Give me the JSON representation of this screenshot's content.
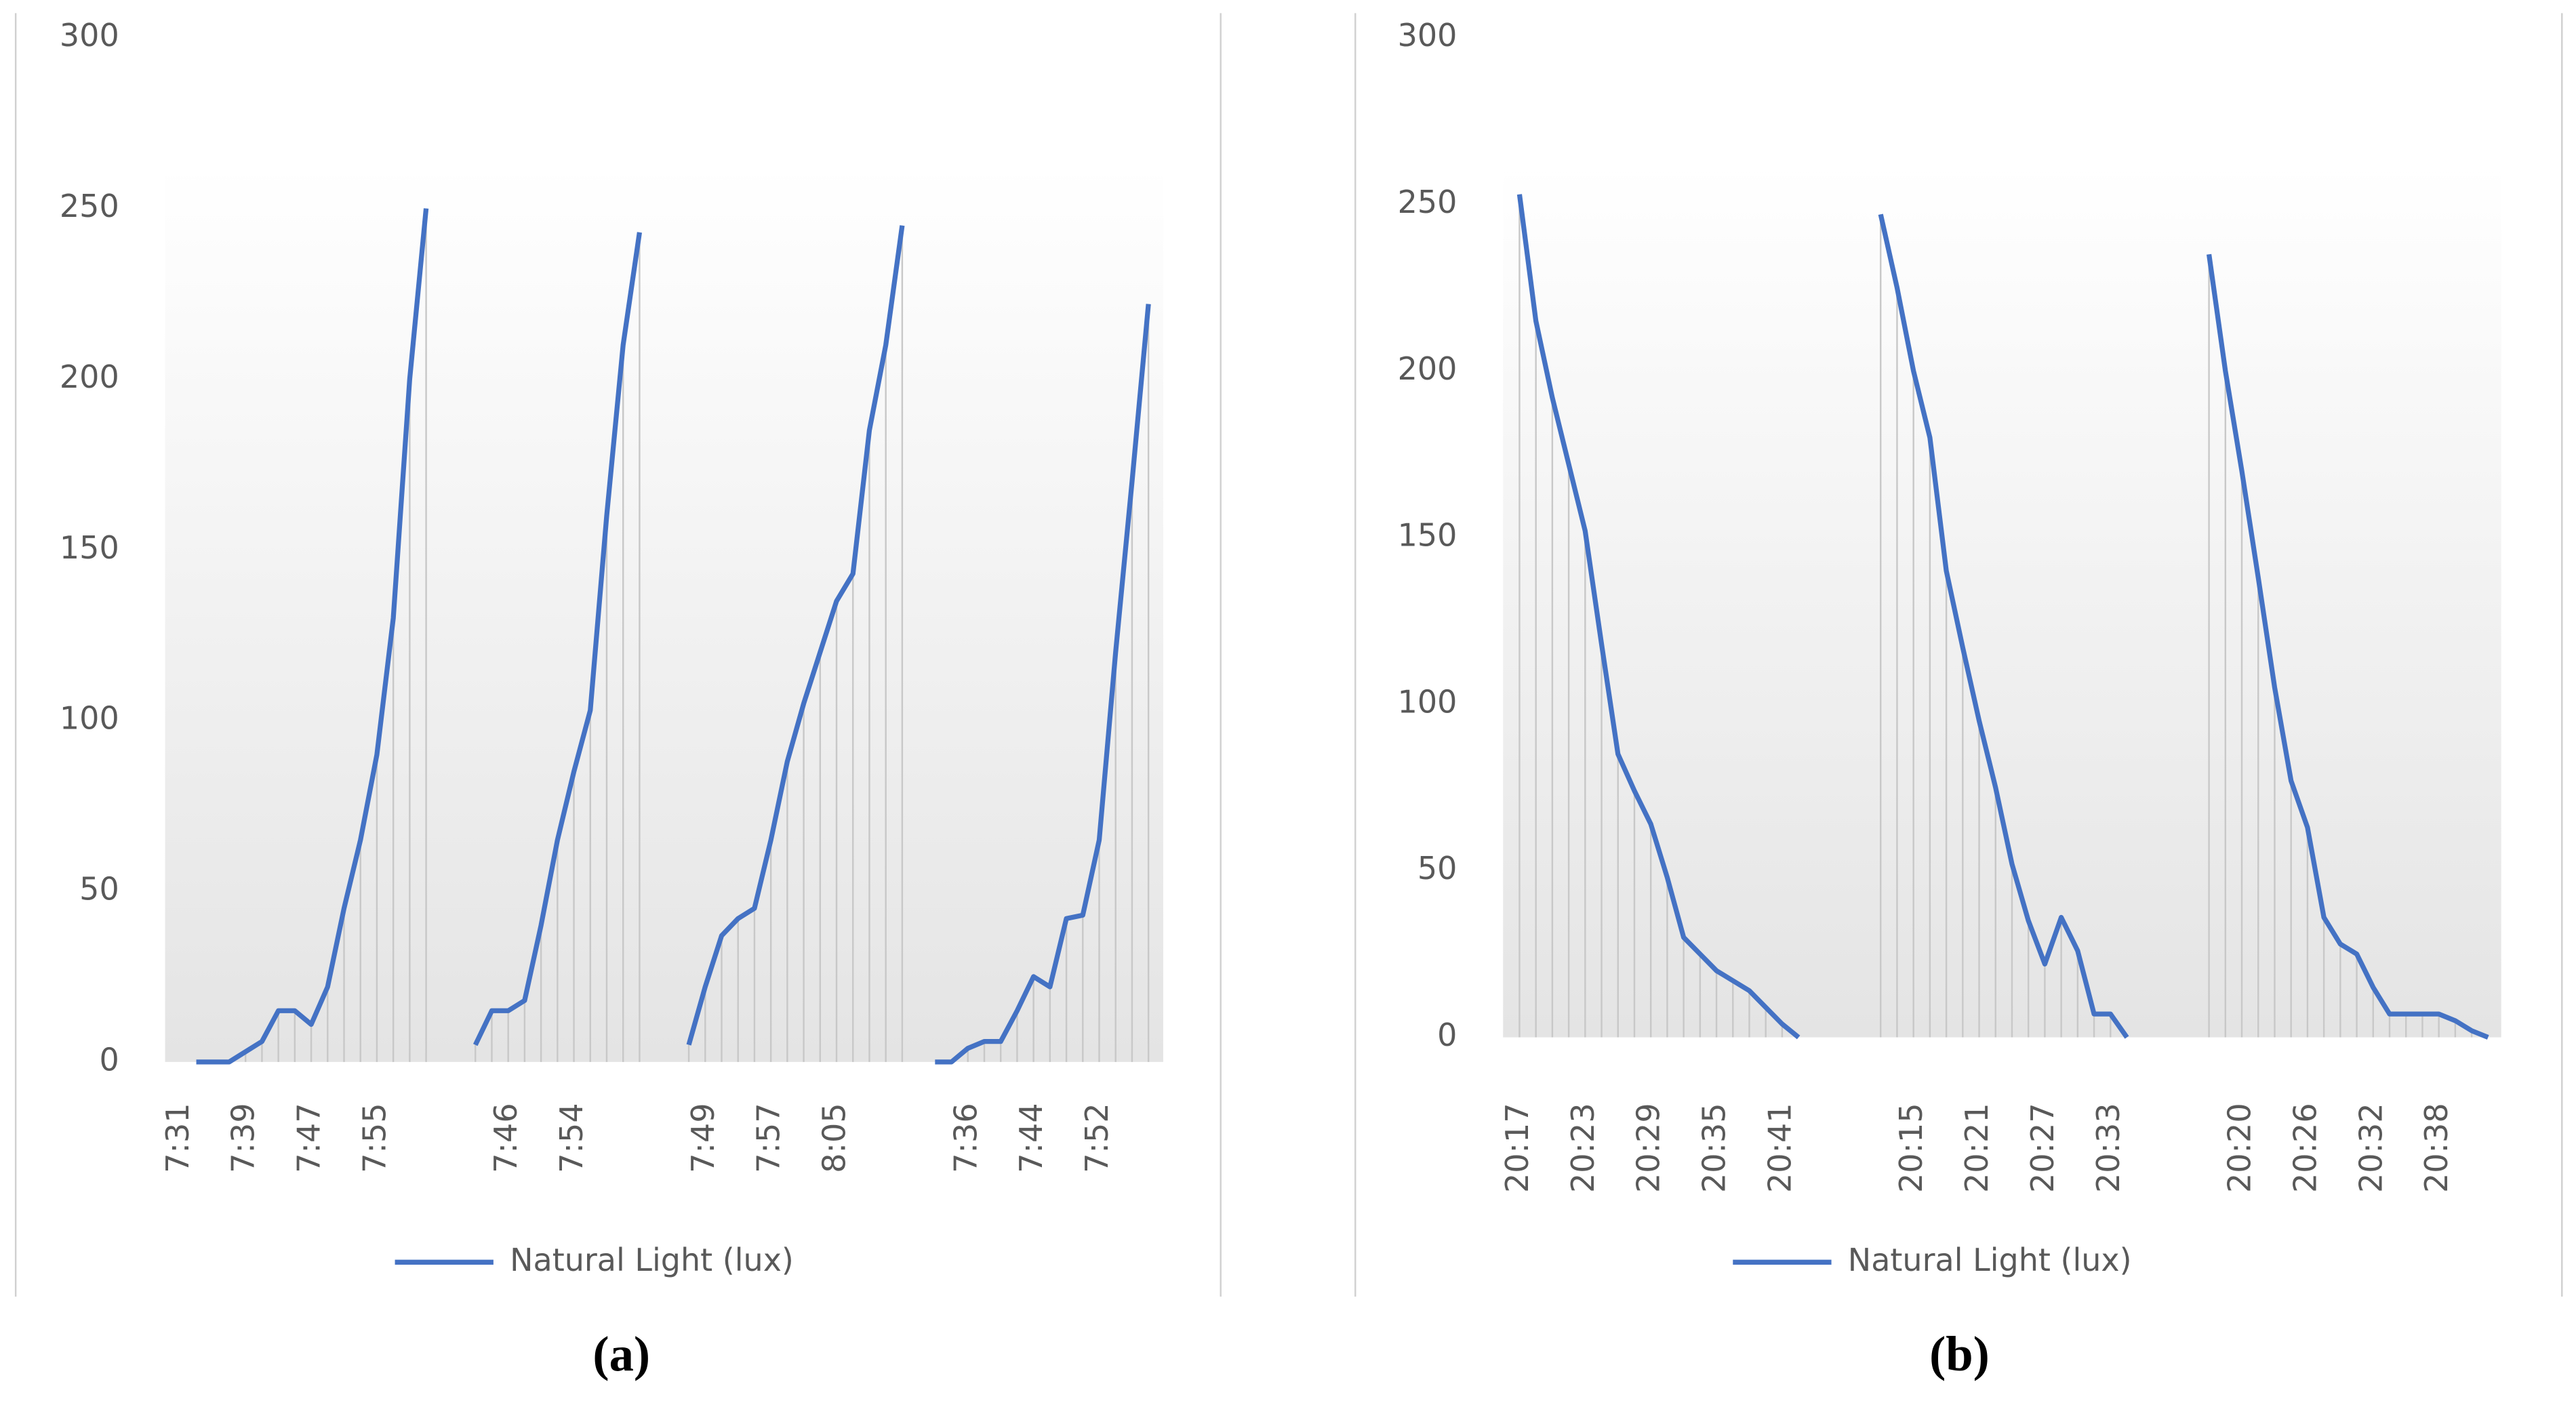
{
  "chart_data": [
    {
      "type": "line",
      "caption": "(a)",
      "categories": [
        "7:31",
        null,
        null,
        null,
        "7:39",
        null,
        null,
        null,
        "7:47",
        null,
        null,
        null,
        "7:55",
        null,
        null,
        null,
        null,
        null,
        null,
        null,
        "7:46",
        null,
        null,
        null,
        "7:54",
        null,
        null,
        null,
        null,
        null,
        null,
        null,
        "7:49",
        null,
        null,
        null,
        "7:57",
        null,
        null,
        null,
        "8:05",
        null,
        null,
        null,
        null,
        null,
        null,
        null,
        "7:36",
        null,
        null,
        null,
        "7:44",
        null,
        null,
        null,
        "7:52",
        null,
        null,
        null
      ],
      "series": [
        {
          "name": "Natural Light (lux)",
          "color": "#4472c4",
          "values": [
            null,
            0,
            0,
            0,
            3,
            6,
            15,
            15,
            11,
            22,
            45,
            65,
            90,
            130,
            200,
            250,
            null,
            null,
            5,
            15,
            15,
            18,
            40,
            65,
            85,
            103,
            160,
            210,
            243,
            null,
            null,
            5,
            22,
            37,
            42,
            45,
            65,
            88,
            105,
            120,
            135,
            143,
            185,
            210,
            245,
            null,
            0,
            0,
            4,
            6,
            6,
            15,
            25,
            22,
            42,
            43,
            65,
            120,
            170,
            222
          ]
        }
      ],
      "ylim": [
        0,
        300
      ],
      "yticks": [
        0,
        50,
        100,
        150,
        200,
        250,
        300
      ],
      "drop_lines": true,
      "legend": "bottom"
    },
    {
      "type": "line",
      "caption": "(b)",
      "categories": [
        "20:17",
        null,
        null,
        null,
        "20:23",
        null,
        null,
        null,
        "20:29",
        null,
        null,
        null,
        "20:35",
        null,
        null,
        null,
        "20:41",
        null,
        null,
        null,
        null,
        null,
        null,
        null,
        "20:15",
        null,
        null,
        null,
        "20:21",
        null,
        null,
        null,
        "20:27",
        null,
        null,
        null,
        "20:33",
        null,
        null,
        null,
        null,
        null,
        null,
        null,
        "20:20",
        null,
        null,
        null,
        "20:26",
        null,
        null,
        null,
        "20:32",
        null,
        null,
        null,
        "20:38",
        null,
        null,
        null
      ],
      "series": [
        {
          "name": "Natural Light (lux)",
          "color": "#4472c4",
          "values": [
            253,
            215,
            192,
            172,
            152,
            118,
            85,
            74,
            64,
            48,
            30,
            25,
            20,
            17,
            14,
            9,
            4,
            0,
            null,
            null,
            null,
            null,
            247,
            225,
            200,
            180,
            140,
            117,
            95,
            75,
            52,
            35,
            22,
            36,
            26,
            7,
            7,
            0,
            null,
            null,
            null,
            null,
            235,
            200,
            170,
            138,
            105,
            77,
            63,
            36,
            28,
            25,
            15,
            7,
            7,
            7,
            7,
            5,
            2,
            0
          ]
        }
      ],
      "ylim": [
        0,
        300
      ],
      "yticks": [
        0,
        50,
        100,
        150,
        200,
        250,
        300
      ],
      "drop_lines": true,
      "legend": "bottom"
    }
  ]
}
